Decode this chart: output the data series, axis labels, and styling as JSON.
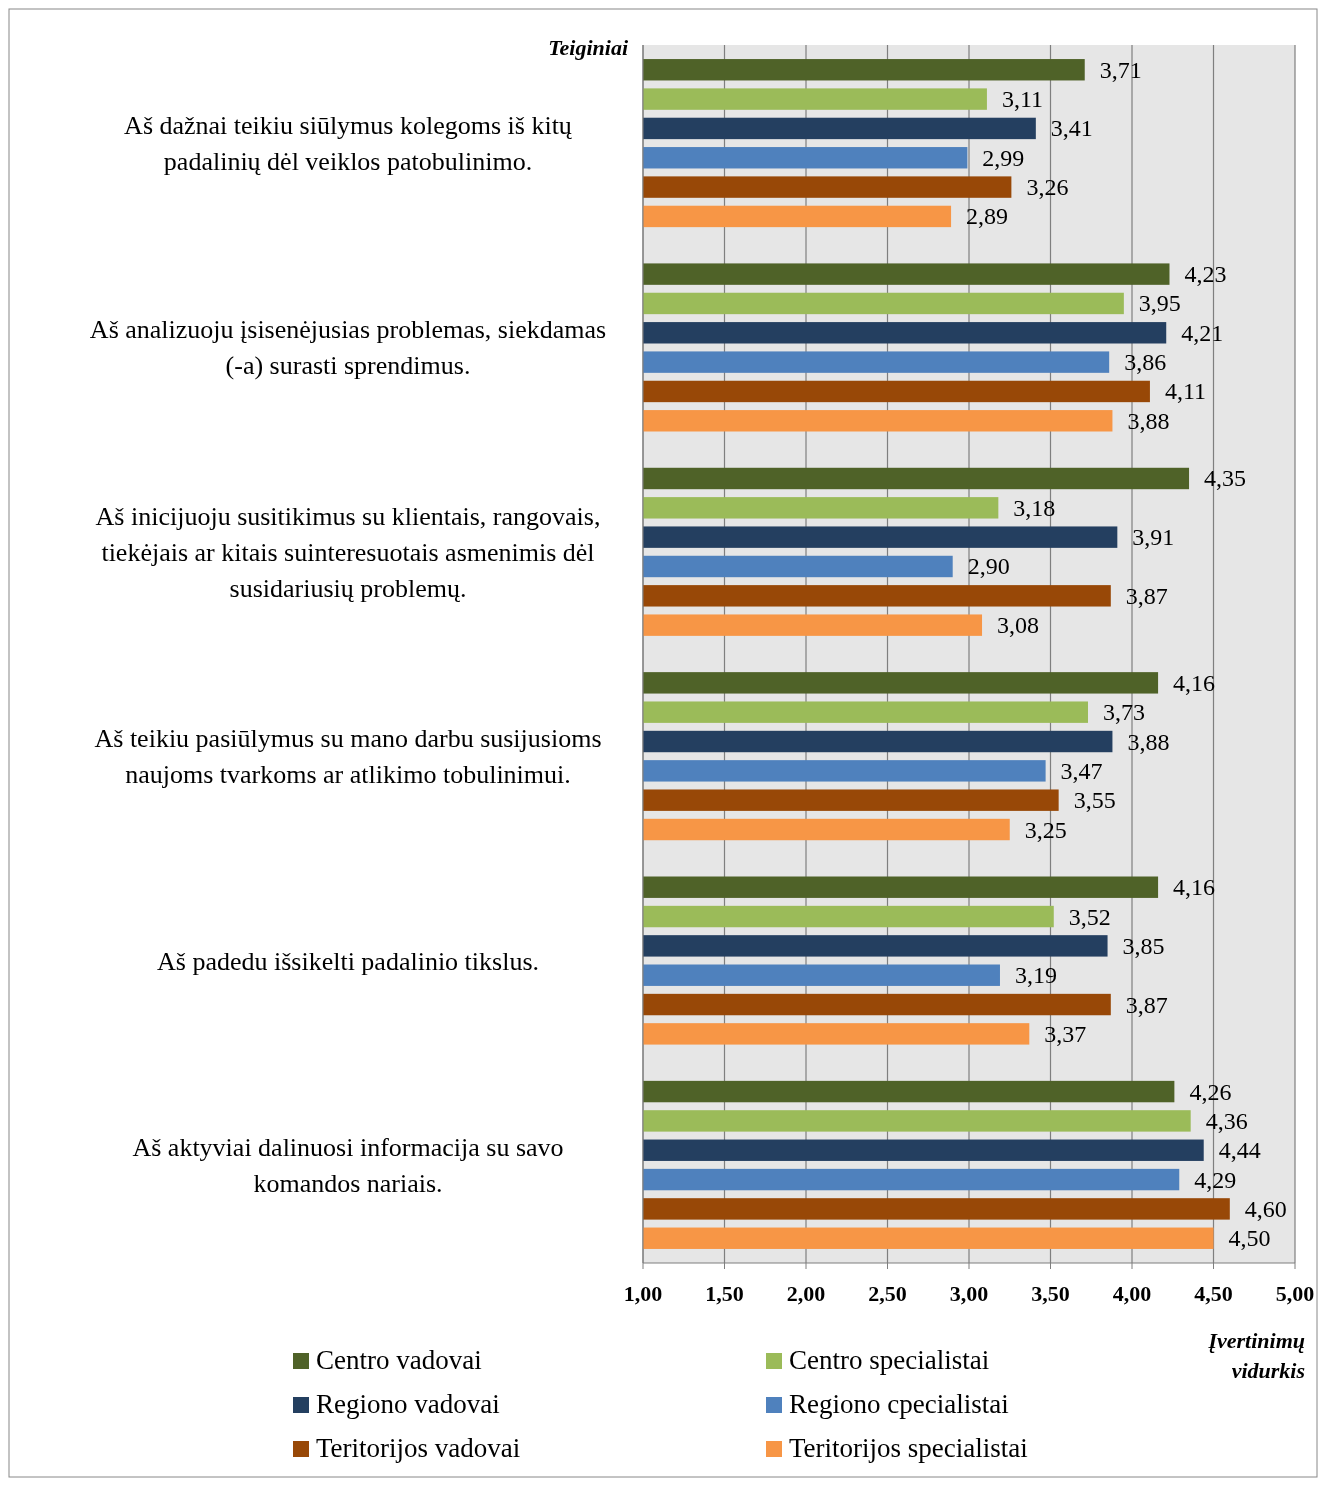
{
  "chart_data": {
    "type": "bar",
    "orientation": "horizontal",
    "ylabel": "Teiginiai",
    "xlabel": "Įvertinimų vidurkis",
    "categories": [
      "Aš dažnai teikiu siūlymus kolegoms iš kitų padalinių dėl veiklos patobulinimo.",
      "Aš analizuoju įsisenėjusias problemas, siekdamas (-a) surasti sprendimus.",
      "Aš inicijuoju susitikimus su klientais, rangovais, tiekėjais ar kitais suinteresuotais asmenimis dėl susidariusių problemų.",
      "Aš teikiu pasiūlymus su mano darbu susijusioms naujoms tvarkoms ar atlikimo tobulinimui.",
      "Aš padedu išsikelti padalinio tikslus.",
      "Aš aktyviai dalinuosi informacija su savo komandos nariais."
    ],
    "series": [
      {
        "name": "Centro vadovai",
        "color": "#4f6228",
        "values": [
          3.71,
          4.23,
          4.35,
          4.16,
          4.16,
          4.26
        ],
        "value_labels": [
          "3,71",
          "4,23",
          "4,35",
          "4,16",
          "4,16",
          "4,26"
        ]
      },
      {
        "name": "Centro specialistai",
        "color": "#9bbb59",
        "values": [
          3.11,
          3.95,
          3.18,
          3.73,
          3.52,
          4.36
        ],
        "value_labels": [
          "3,11",
          "3,95",
          "3,18",
          "3,73",
          "3,52",
          "4,36"
        ]
      },
      {
        "name": "Regiono vadovai",
        "color": "#243f60",
        "values": [
          3.41,
          4.21,
          3.91,
          3.88,
          3.85,
          4.44
        ],
        "value_labels": [
          "3,41",
          "4,21",
          "3,91",
          "3,88",
          "3,85",
          "4,44"
        ]
      },
      {
        "name": "Regiono cpecialistai",
        "color": "#4f81bd",
        "values": [
          2.99,
          3.86,
          2.9,
          3.47,
          3.19,
          4.29
        ],
        "value_labels": [
          "2,99",
          "3,86",
          "2,90",
          "3,47",
          "3,19",
          "4,29"
        ]
      },
      {
        "name": "Teritorijos vadovai",
        "color": "#984807",
        "values": [
          3.26,
          4.11,
          3.87,
          3.55,
          3.87,
          4.6
        ],
        "value_labels": [
          "3,26",
          "4,11",
          "3,87",
          "3,55",
          "3,87",
          "4,60"
        ]
      },
      {
        "name": "Teritorijos specialistai",
        "color": "#f79646",
        "values": [
          2.89,
          3.88,
          3.08,
          3.25,
          3.37,
          4.5
        ],
        "value_labels": [
          "2,89",
          "3,88",
          "3,08",
          "3,25",
          "3,37",
          "4,50"
        ]
      }
    ],
    "xlim": [
      1,
      5
    ],
    "xticks": [
      {
        "value": 1,
        "label": "1,00"
      },
      {
        "value": 1.5,
        "label": "1,50"
      },
      {
        "value": 2,
        "label": "2,00"
      },
      {
        "value": 2.5,
        "label": "2,50"
      },
      {
        "value": 3,
        "label": "3,00"
      },
      {
        "value": 3.5,
        "label": "3,50"
      },
      {
        "value": 4,
        "label": "4,00"
      },
      {
        "value": 4.5,
        "label": "4,50"
      },
      {
        "value": 5,
        "label": "5,00"
      }
    ],
    "grid": "x",
    "legend": "bottom"
  }
}
